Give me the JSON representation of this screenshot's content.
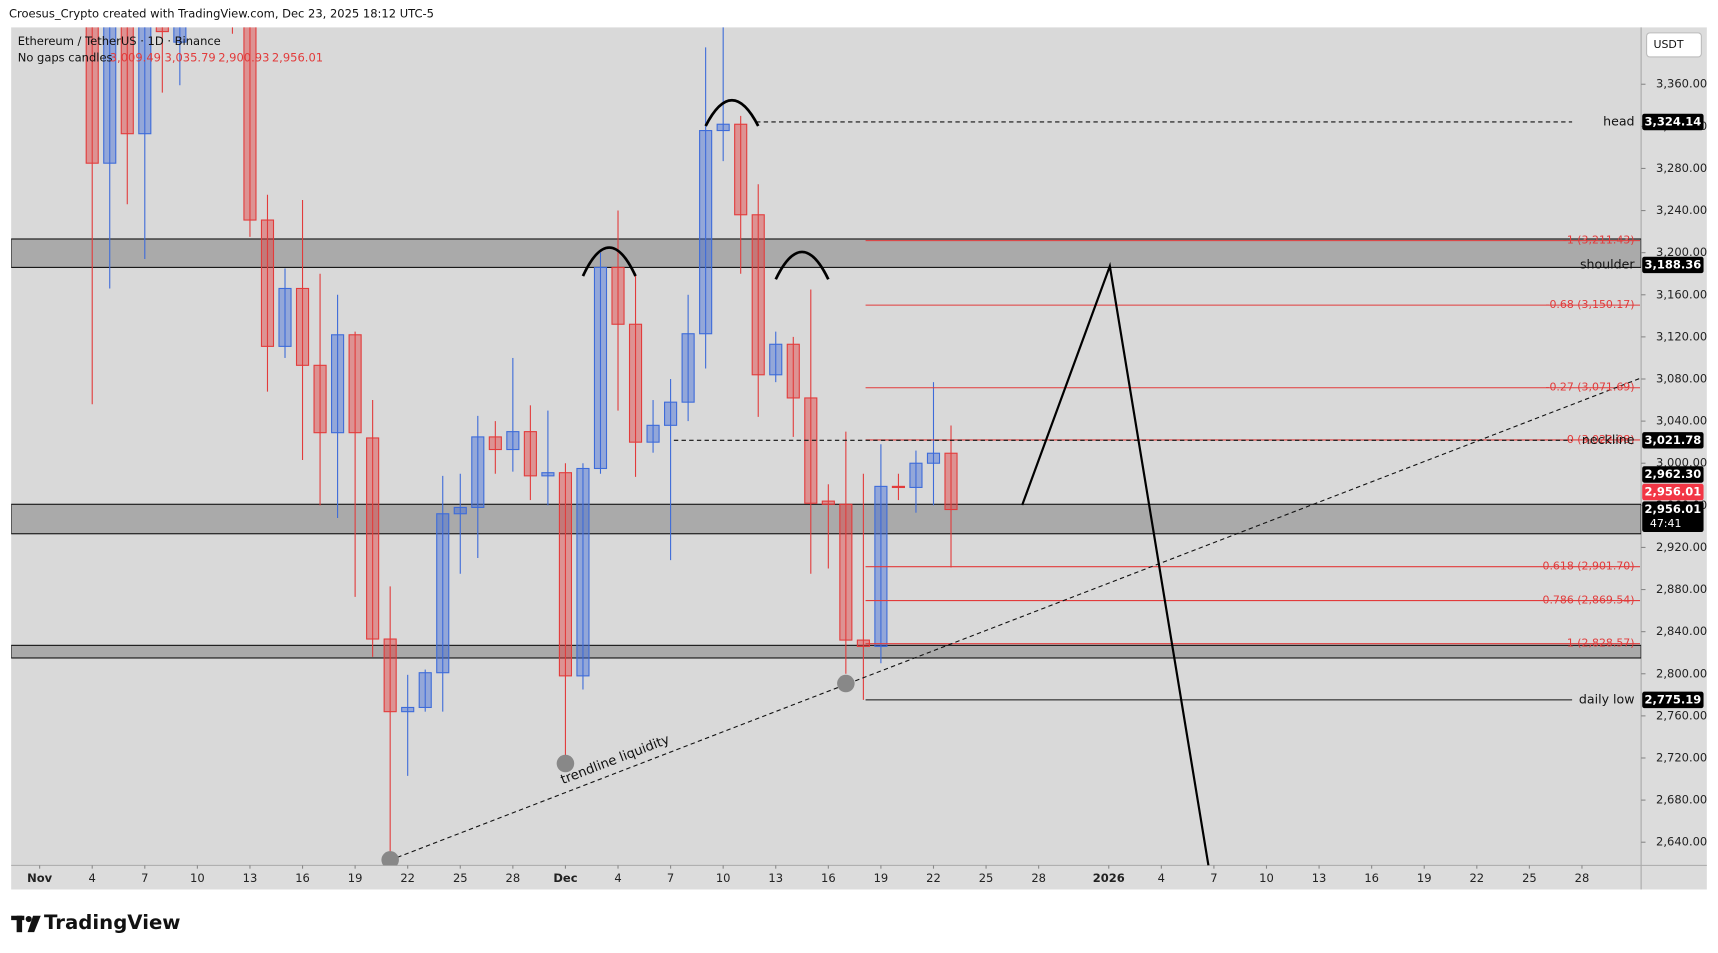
{
  "header": {
    "credit": "Croesus_Crypto created with TradingView.com, Dec 23, 2025 18:12 UTC-5",
    "brand": "TradingView"
  },
  "chart_data": {
    "type": "candlestick",
    "title": "Ethereum / TetherUS · 1D · Binance",
    "subtitle": "No gaps candles",
    "ohlc_labels": [
      "3,009.49",
      "3,035.79",
      "2,900.93",
      "2,956.01"
    ],
    "currency": "USDT",
    "up_color": "#3d6bd9",
    "down_color": "#e23b3b",
    "x": [
      3,
      4,
      5,
      6,
      7,
      8,
      9,
      10,
      11,
      12,
      13,
      14,
      15,
      16,
      17,
      18,
      19,
      20,
      21,
      22,
      23,
      24,
      25,
      26,
      27,
      28,
      29,
      30,
      31,
      32,
      33,
      34,
      35,
      36,
      37,
      38,
      39,
      40,
      41,
      42,
      43,
      44,
      45,
      46,
      47,
      48,
      49,
      50,
      51,
      52
    ],
    "open": [
      3450,
      3285,
      3440,
      3313,
      3430,
      3400,
      3430,
      3460,
      3440,
      3420,
      3231,
      3111,
      3166,
      3093,
      3029,
      3122,
      3024,
      2833,
      2764,
      2768,
      2801,
      2952,
      2958,
      3025,
      3013,
      3030,
      2988,
      2991,
      2798,
      2995,
      3186,
      3132,
      3020,
      3036,
      3058,
      3123,
      3316,
      3322,
      3236,
      3084,
      3113,
      3062,
      2964,
      2961,
      2832,
      2826,
      2978,
      2977,
      3000,
      3009.49
    ],
    "high": [
      3470,
      3450,
      3460,
      3450,
      3440,
      3440,
      3480,
      3490,
      3460,
      3440,
      3255,
      3185,
      3250,
      3180,
      3160,
      3125,
      3060,
      2883,
      2799,
      2804,
      2988,
      2990,
      3045,
      3040,
      3100,
      3055,
      3050,
      3000,
      3000,
      3200,
      3240,
      3180,
      3060,
      3080,
      3160,
      3395,
      3430,
      3330,
      3265,
      3125,
      3120,
      3165,
      2980,
      3030,
      2990,
      3018,
      2990,
      3012,
      3077,
      3035.79
    ],
    "low": [
      3056,
      3166,
      3246,
      3194,
      3352,
      3359,
      3415,
      3420,
      3408,
      3215,
      3068,
      3100,
      3003,
      2960,
      2948,
      2873,
      2816,
      2623,
      2703,
      2764,
      2764,
      2895,
      2910,
      2990,
      2992,
      2965,
      2960,
      2715,
      2785,
      2990,
      3050,
      2987,
      3010,
      2908,
      3040,
      3090,
      3287,
      3180,
      3044,
      3077,
      3025,
      2895,
      2900,
      2800,
      2775.19,
      2810,
      2965,
      2953,
      2960,
      2900.93
    ],
    "close": [
      3285,
      3440,
      3313,
      3430,
      3410,
      3430,
      3460,
      3440,
      3420,
      3231,
      3111,
      3166,
      3093,
      3029,
      3122,
      3029,
      2833,
      2764,
      2768,
      2801,
      2952,
      2958,
      3025,
      3013,
      3030,
      2988,
      2991,
      2798,
      2995,
      3186,
      3132,
      3020,
      3036,
      3058,
      3123,
      3316,
      3322,
      3236,
      3084,
      3113,
      3062,
      2962,
      2961,
      2832,
      2826,
      2978,
      2977,
      3000,
      3009.49,
      2956.01
    ],
    "xlim": [
      -1.625,
      91.375
    ],
    "xticks": [
      {
        "value": 0,
        "label": "Nov"
      },
      {
        "value": 3,
        "label": "4"
      },
      {
        "value": 6,
        "label": "7"
      },
      {
        "value": 9,
        "label": "10"
      },
      {
        "value": 12,
        "label": "13"
      },
      {
        "value": 15,
        "label": "16"
      },
      {
        "value": 18,
        "label": "19"
      },
      {
        "value": 21,
        "label": "22"
      },
      {
        "value": 24,
        "label": "25"
      },
      {
        "value": 27,
        "label": "28"
      },
      {
        "value": 30,
        "label": "Dec"
      },
      {
        "value": 33,
        "label": "4"
      },
      {
        "value": 36,
        "label": "7"
      },
      {
        "value": 39,
        "label": "10"
      },
      {
        "value": 42,
        "label": "13"
      },
      {
        "value": 45,
        "label": "16"
      },
      {
        "value": 48,
        "label": "19"
      },
      {
        "value": 51,
        "label": "22"
      },
      {
        "value": 54,
        "label": "25"
      },
      {
        "value": 57,
        "label": "28"
      },
      {
        "value": 61,
        "label": "2026"
      },
      {
        "value": 64,
        "label": "4"
      },
      {
        "value": 67,
        "label": "7"
      },
      {
        "value": 70,
        "label": "10"
      },
      {
        "value": 73,
        "label": "13"
      },
      {
        "value": 76,
        "label": "16"
      },
      {
        "value": 79,
        "label": "19"
      },
      {
        "value": 82,
        "label": "22"
      },
      {
        "value": 85,
        "label": "25"
      },
      {
        "value": 88,
        "label": "28"
      }
    ],
    "ylim": [
      2618,
      3414
    ],
    "yticks": [
      {
        "value": 2640,
        "label": "2,640.00"
      },
      {
        "value": 2680,
        "label": "2,680.00"
      },
      {
        "value": 2720,
        "label": "2,720.00"
      },
      {
        "value": 2760,
        "label": "2,760.00"
      },
      {
        "value": 2800,
        "label": "2,800.00"
      },
      {
        "value": 2840,
        "label": "2,840.00"
      },
      {
        "value": 2880,
        "label": "2,880.00"
      },
      {
        "value": 2920,
        "label": "2,920.00"
      },
      {
        "value": 2960,
        "label": "2,960.00"
      },
      {
        "value": 3000,
        "label": "3,000.00"
      },
      {
        "value": 3040,
        "label": "3,040.00"
      },
      {
        "value": 3080,
        "label": "3,080.00"
      },
      {
        "value": 3120,
        "label": "3,120.00"
      },
      {
        "value": 3160,
        "label": "3,160.00"
      },
      {
        "value": 3200,
        "label": "3,200.00"
      },
      {
        "value": 3240,
        "label": "3,240.00"
      },
      {
        "value": 3280,
        "label": "3,280.00"
      },
      {
        "value": 3320,
        "label": "3,320.00"
      },
      {
        "value": 3360,
        "label": "3,360.00"
      }
    ],
    "grid": false,
    "zones": [
      {
        "from": 3186,
        "to": 3213
      },
      {
        "from": 2933,
        "to": 2961
      },
      {
        "from": 2815,
        "to": 2827
      }
    ],
    "levels": [
      {
        "label": "head",
        "value": 3324.14,
        "style": "dashed"
      },
      {
        "label": "shoulder",
        "value": 3188.36,
        "style": "none"
      },
      {
        "label": "neckline",
        "value": 3021.78,
        "style": "dashed"
      },
      {
        "label": "daily low",
        "value": 2775.19,
        "style": "solid"
      }
    ],
    "fib_levels": [
      {
        "label": "-1 (3,211.43)",
        "value": 3211.43
      },
      {
        "label": "-0.68 (3,150.17)",
        "value": 3150.17
      },
      {
        "label": "-0.27 (3,071.69)",
        "value": 3071.69
      },
      {
        "label": "0 (3,022.08)",
        "value": 3022.08
      },
      {
        "label": "0.618 (2,901.70)",
        "value": 2901.7
      },
      {
        "label": "0.786 (2,869.54)",
        "value": 2869.54
      },
      {
        "label": "1 (2,828.57)",
        "value": 2828.57
      }
    ],
    "trendline": {
      "label": "trendline liquidity",
      "x": [
        20,
        91.375
      ],
      "y": [
        2623,
        3081
      ]
    },
    "price_tags": [
      {
        "value": 3324.14,
        "label": "3,324.14",
        "color": "#000000"
      },
      {
        "value": 3188.36,
        "label": "3,188.36",
        "color": "#000000"
      },
      {
        "value": 3021.78,
        "label": "3,021.78",
        "color": "#000000"
      },
      {
        "value": 2962.3,
        "label": "2,962.30",
        "color": "#000000"
      },
      {
        "value": 2956.01,
        "label": "2,956.01",
        "color": "#f23645"
      },
      {
        "value": 2956.01,
        "label": "2,956.01",
        "color": "#000000",
        "countdown": "47:41"
      },
      {
        "value": 2775.19,
        "label": "2,775.19",
        "color": "#000000"
      }
    ]
  }
}
